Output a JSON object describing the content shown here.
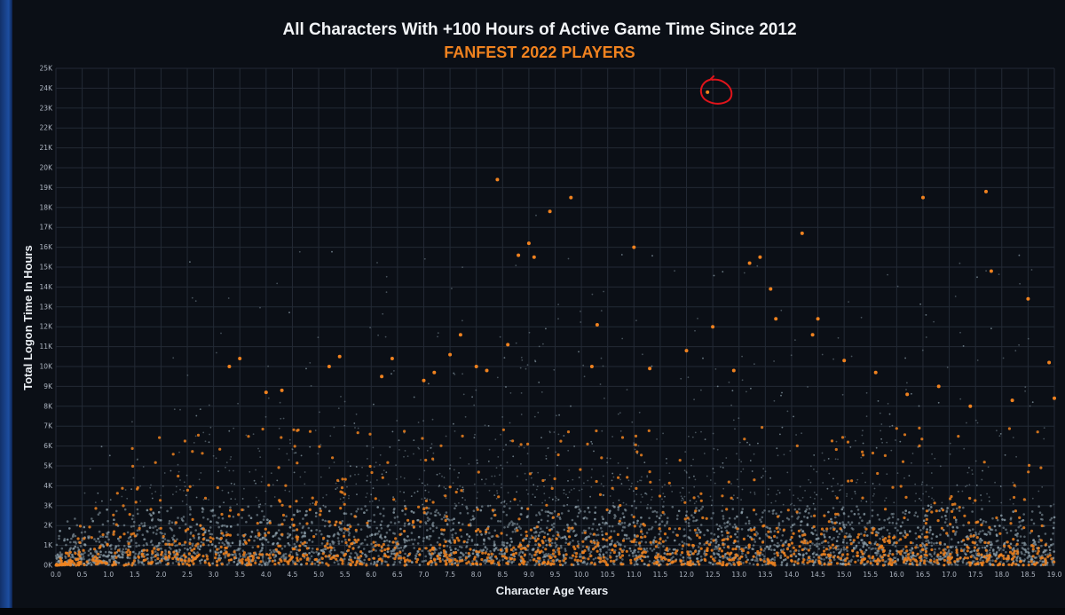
{
  "chart_data": {
    "type": "scatter",
    "title": "All Characters With +100 Hours of Active Game Time Since 2012",
    "subtitle": "FANFEST 2022 PLAYERS",
    "xlabel": "Character Age Years",
    "ylabel": "Total Logon Time In Hours",
    "xlim": [
      0,
      19
    ],
    "ylim": [
      0,
      25000
    ],
    "x_ticks": [
      "0.0",
      "0.5",
      "1.0",
      "1.5",
      "2.0",
      "2.5",
      "3.0",
      "3.5",
      "4.0",
      "4.5",
      "5.0",
      "5.5",
      "6.0",
      "6.5",
      "7.0",
      "7.5",
      "8.0",
      "8.5",
      "9.0",
      "9.5",
      "10.0",
      "10.5",
      "11.0",
      "11.5",
      "12.0",
      "12.5",
      "13.0",
      "13.5",
      "14.0",
      "14.5",
      "15.0",
      "15.5",
      "16.0",
      "16.5",
      "17.0",
      "17.5",
      "18.0",
      "18.5",
      "19.0"
    ],
    "y_ticks": [
      "0K",
      "1K",
      "2K",
      "3K",
      "4K",
      "5K",
      "6K",
      "7K",
      "8K",
      "9K",
      "10K",
      "11K",
      "12K",
      "13K",
      "14K",
      "15K",
      "16K",
      "17K",
      "18K",
      "19K",
      "20K",
      "21K",
      "22K",
      "23K",
      "24K",
      "25K"
    ],
    "grid": true,
    "colors": {
      "background": "#0b0f16",
      "grid": "#232a35",
      "all_characters": "#8fa2ad",
      "fanfest_players": "#f0821f",
      "annotation": "#e0141b"
    },
    "series": [
      {
        "color": "#8fa2ad",
        "description_points": "dense cloud; values below are representative density samples",
        "x": [],
        "y": []
      },
      {
        "color": "#f0821f",
        "x": [
          3.3,
          3.5,
          4.0,
          4.3,
          5.2,
          5.4,
          6.2,
          6.4,
          7.0,
          7.2,
          7.5,
          7.7,
          8.0,
          8.2,
          8.4,
          8.6,
          8.8,
          9.0,
          9.1,
          9.4,
          9.8,
          10.2,
          10.3,
          11.0,
          11.3,
          12.0,
          12.4,
          12.5,
          12.9,
          13.2,
          13.4,
          13.6,
          13.7,
          14.2,
          14.4,
          14.5,
          15.0,
          15.6,
          16.2,
          16.5,
          16.8,
          17.4,
          17.7,
          17.8,
          18.2,
          18.5,
          18.9,
          19.0
        ],
        "y": [
          10000,
          10400,
          8700,
          8800,
          10000,
          10500,
          9500,
          10400,
          9300,
          9700,
          10600,
          11600,
          10000,
          9800,
          19400,
          11100,
          15600,
          16200,
          15500,
          17800,
          18500,
          10000,
          12100,
          16000,
          9900,
          10800,
          23800,
          12000,
          9800,
          15200,
          15500,
          13900,
          12400,
          16700,
          11600,
          12400,
          10300,
          9700,
          8600,
          18500,
          9000,
          8000,
          18800,
          14800,
          8300,
          13400,
          10200,
          8400
        ]
      }
    ],
    "annotation": {
      "shape": "hand-drawn circle",
      "x": 12.55,
      "y": 23800
    }
  }
}
